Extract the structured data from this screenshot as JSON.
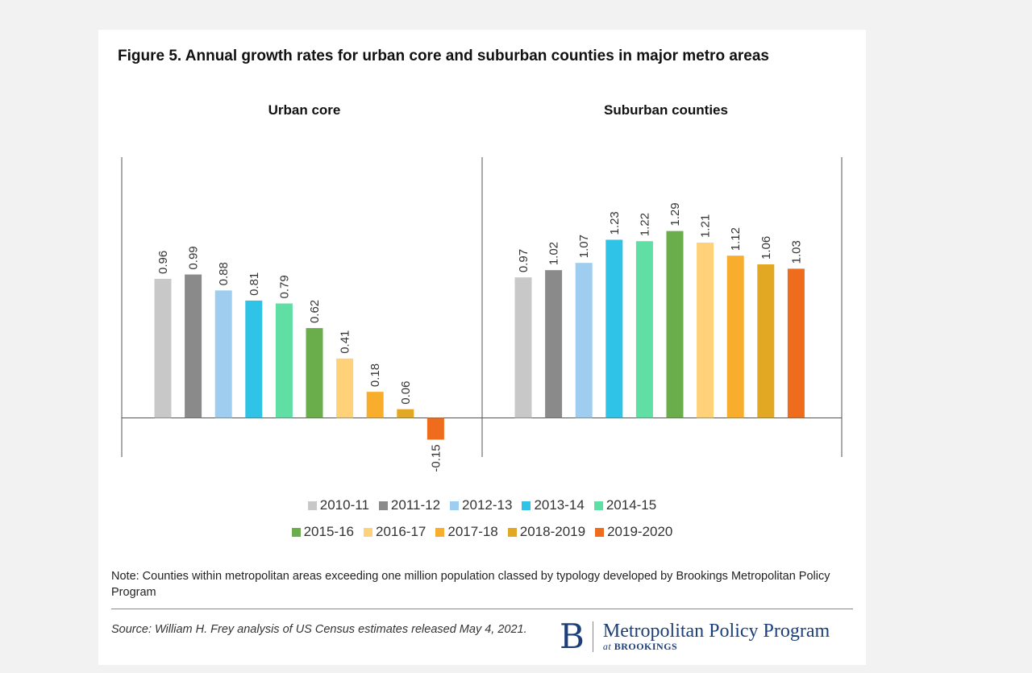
{
  "title": "Figure 5. Annual growth rates for urban core and suburban counties in major metro areas",
  "legend_rows": [
    [
      0,
      1,
      2,
      3,
      4
    ],
    [
      5,
      6,
      7,
      8,
      9
    ]
  ],
  "chart_data": {
    "type": "bar",
    "ylim": [
      -0.27,
      1.8
    ],
    "grid": false,
    "legend_position": "bottom",
    "categories": [
      "2010-11",
      "2011-12",
      "2012-13",
      "2013-14",
      "2014-15",
      "2015-16",
      "2016-17",
      "2017-18",
      "2018-2019",
      "2019-2020"
    ],
    "colors": [
      "#c8c8c8",
      "#8a8a8a",
      "#9ecdf0",
      "#2fc3e8",
      "#5fdfa3",
      "#6aad4b",
      "#ffd27a",
      "#f8ad2d",
      "#e3a823",
      "#ef6c1c"
    ],
    "panels": [
      {
        "title": "Urban core",
        "values": [
          0.96,
          0.99,
          0.88,
          0.81,
          0.79,
          0.62,
          0.41,
          0.18,
          0.06,
          -0.15
        ],
        "labels": [
          "0.96",
          "0.99",
          "0.88",
          "0.81",
          "0.79",
          "0.62",
          "0.41",
          "0.18",
          "0.06",
          "-0.15"
        ]
      },
      {
        "title": "Suburban counties",
        "values": [
          0.97,
          1.02,
          1.07,
          1.23,
          1.22,
          1.29,
          1.21,
          1.12,
          1.06,
          1.03
        ],
        "labels": [
          "0.97",
          "1.02",
          "1.07",
          "1.23",
          "1.22",
          "1.29",
          "1.21",
          "1.12",
          "1.06",
          "1.03"
        ]
      }
    ]
  },
  "note": "Note: Counties within metropolitan areas exceeding one million population classed by typology developed by Brookings Metropolitan Policy Program",
  "source": "Source: William H. Frey analysis of US Census estimates released May 4, 2021.",
  "logo": {
    "mark": "B",
    "name": "Metropolitan Policy Program",
    "sub_at": "at",
    "sub_org": "BROOKINGS"
  }
}
